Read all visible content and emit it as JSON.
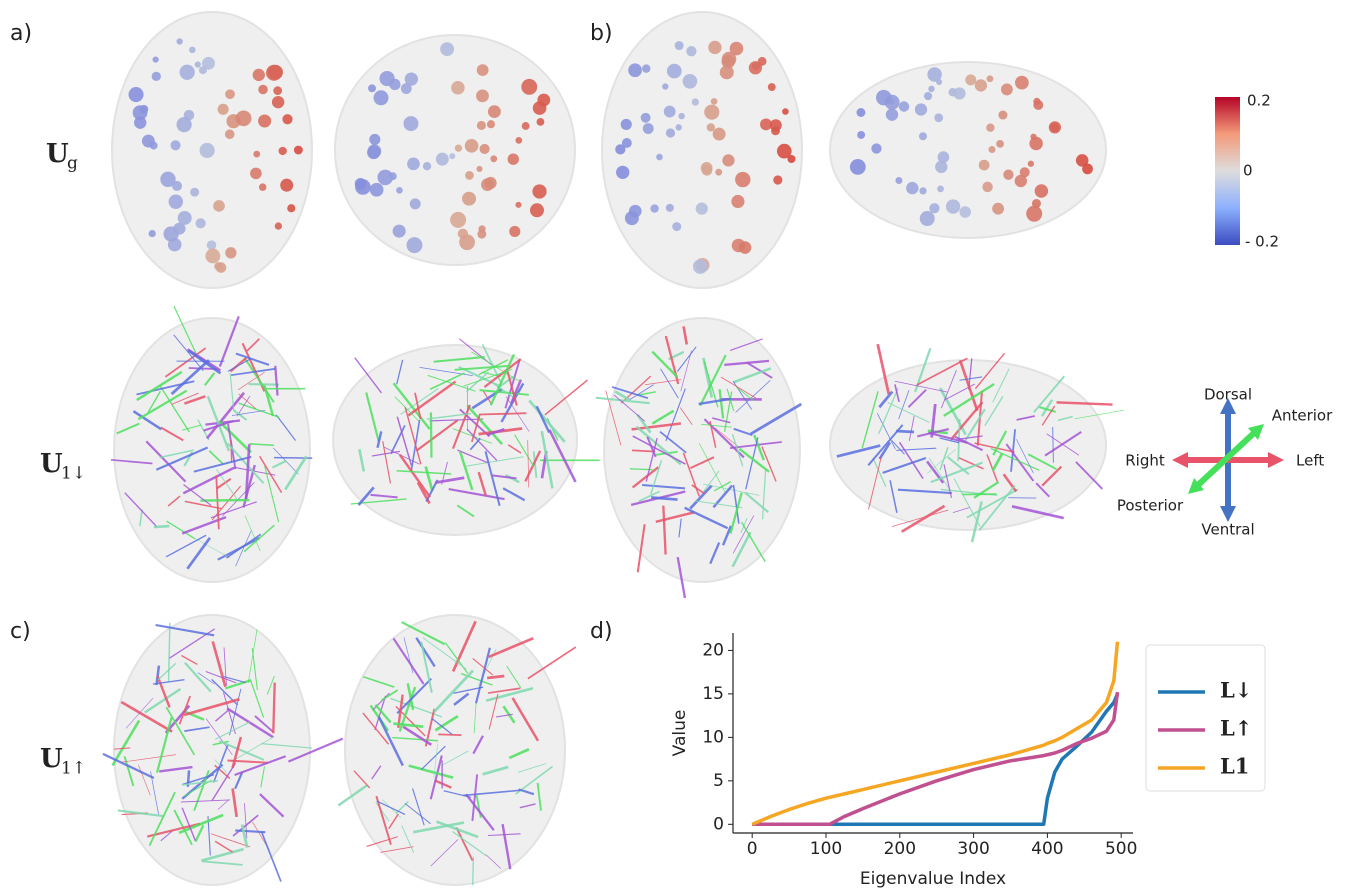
{
  "panels": {
    "labels": [
      "a)",
      "b)",
      "c)",
      "d)"
    ]
  },
  "rows": [
    {
      "main": "U",
      "sub": "g"
    },
    {
      "main": "U",
      "sub": "1↓"
    },
    {
      "main": "U",
      "sub": "1↑"
    }
  ],
  "colorbar": {
    "ticks": [
      "0.2",
      "0",
      "- 0.2"
    ]
  },
  "directions": {
    "up": "Dorsal",
    "diag_up": "Anterior",
    "left": "Right",
    "right": "Left",
    "diag_down": "Posterior",
    "down": "Ventral"
  },
  "chart_data": {
    "type": "line",
    "xlabel": "Eigenvalue Index",
    "ylabel": "Value",
    "x": [
      0,
      25,
      50,
      75,
      100,
      105,
      125,
      150,
      200,
      250,
      300,
      350,
      395,
      400,
      410,
      420,
      440,
      460,
      480,
      490,
      495
    ],
    "series": [
      {
        "name": "L↓",
        "color": "#1f77b4",
        "values": [
          0,
          0,
          0,
          0,
          0,
          0,
          0,
          0,
          0,
          0,
          0,
          0,
          0,
          3.0,
          6.0,
          7.5,
          9.0,
          10.6,
          13.0,
          14.0,
          15.0
        ]
      },
      {
        "name": "L↑",
        "color": "#c0508f",
        "values": [
          0,
          0,
          0,
          0,
          0,
          0,
          0.9,
          1.8,
          3.5,
          5.0,
          6.3,
          7.3,
          7.9,
          8.0,
          8.2,
          8.5,
          9.3,
          9.9,
          10.7,
          12.0,
          15.2
        ]
      },
      {
        "name": "L1",
        "color": "#f5a623",
        "values": [
          0,
          0.9,
          1.7,
          2.4,
          3.0,
          3.1,
          3.5,
          4.0,
          5.0,
          6.0,
          7.0,
          8.0,
          9.1,
          9.3,
          9.6,
          10.0,
          11.0,
          12.0,
          14.0,
          16.5,
          21.0
        ]
      }
    ],
    "xlim": [
      -26,
      516
    ],
    "ylim": [
      -1,
      22
    ],
    "xticks": [
      0,
      100,
      200,
      300,
      400,
      500
    ],
    "yticks": [
      0,
      5,
      10,
      15,
      20
    ]
  }
}
